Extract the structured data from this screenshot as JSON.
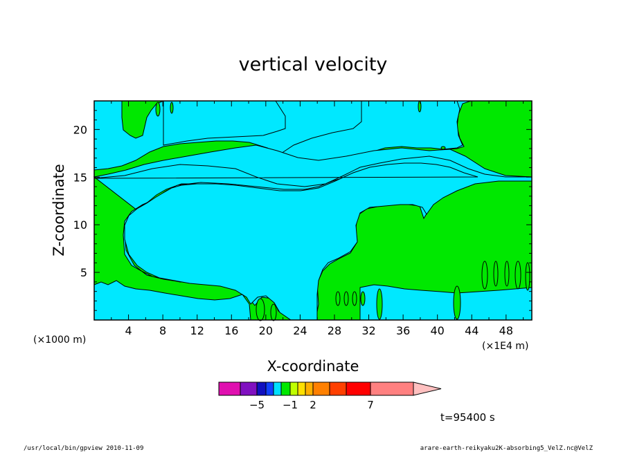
{
  "chart_data": {
    "type": "contour",
    "title": "vertical velocity",
    "xlabel": "X-coordinate",
    "ylabel": "Z-coordinate",
    "x_unit_left": "(×1000 m)",
    "x_unit_right": "(×1E4 m)",
    "xlim": [
      0,
      51
    ],
    "ylim": [
      0,
      23
    ],
    "xticks": [
      4,
      8,
      12,
      16,
      20,
      24,
      28,
      32,
      36,
      40,
      44,
      48
    ],
    "yticks": [
      5,
      10,
      15,
      20
    ],
    "grid": false,
    "colorbar": {
      "levels": [
        -7,
        -6,
        -5,
        -4,
        -3,
        -2,
        -1,
        0,
        1,
        2,
        3,
        5,
        7,
        9,
        12
      ],
      "colors": [
        "#e010b0",
        "#8010c0",
        "#1010c0",
        "#1040ff",
        "#00e0ff",
        "#00e800",
        "#c0ff00",
        "#ffe000",
        "#ffb000",
        "#ff8000",
        "#ff4000",
        "#ff0000",
        "#ff8080",
        "#ffc0c0"
      ],
      "labels": [
        {
          "value": -5,
          "text": "−5"
        },
        {
          "value": -1,
          "text": "−1"
        },
        {
          "value": 2,
          "text": "2"
        },
        {
          "value": 7,
          "text": "7"
        }
      ]
    },
    "fill_colors": {
      "positive_weak": "#00e800",
      "negative_weak": "#00e8ff"
    }
  },
  "time_label": "t=95400 s",
  "footer_left": "/usr/local/bin/gpview  2010-11-09",
  "footer_right": "arare-earth-reikyaku2K-absorbing5_VelZ.nc@VelZ"
}
